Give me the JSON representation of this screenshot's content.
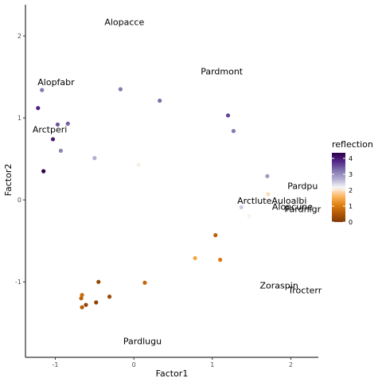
{
  "chart_data": {
    "type": "scatter",
    "xlabel": "Factor1",
    "ylabel": "Factor2",
    "xlim": [
      -1.38,
      2.35
    ],
    "ylim": [
      -1.92,
      2.38
    ],
    "x_ticks": [
      -1,
      0,
      1,
      2
    ],
    "x_tick_labels": [
      "-1",
      "0",
      "1",
      "2"
    ],
    "y_ticks": [
      -1,
      0,
      1,
      2
    ],
    "y_tick_labels": [
      "-1",
      "0",
      "1",
      "2"
    ],
    "grid": false,
    "color_scale": {
      "title": "reflection",
      "min": 0,
      "max": 4.35,
      "ticks": [
        0,
        1,
        2,
        3,
        4
      ],
      "tick_labels": [
        "0",
        "1",
        "2",
        "3",
        "4"
      ],
      "colors": [
        "#7f3b08",
        "#b35806",
        "#e08214",
        "#fdb863",
        "#f7f7f7",
        "#b2abd2",
        "#8073ac",
        "#542788",
        "#2d004b"
      ]
    },
    "points": [
      {
        "x": -1.17,
        "y": 1.34,
        "v": 3.2
      },
      {
        "x": -1.22,
        "y": 1.12,
        "v": 3.9
      },
      {
        "x": -0.97,
        "y": 0.92,
        "v": 3.5
      },
      {
        "x": -0.84,
        "y": 0.93,
        "v": 3.4
      },
      {
        "x": -1.03,
        "y": 0.74,
        "v": 4.0
      },
      {
        "x": -0.93,
        "y": 0.6,
        "v": 3.1
      },
      {
        "x": -1.15,
        "y": 0.35,
        "v": 4.35
      },
      {
        "x": -0.5,
        "y": 0.51,
        "v": 2.7
      },
      {
        "x": -0.17,
        "y": 1.35,
        "v": 3.2
      },
      {
        "x": 0.33,
        "y": 1.21,
        "v": 3.3
      },
      {
        "x": 0.06,
        "y": 0.43,
        "v": 2.1
      },
      {
        "x": 1.2,
        "y": 1.03,
        "v": 3.6
      },
      {
        "x": 1.27,
        "y": 0.84,
        "v": 3.2
      },
      {
        "x": 1.7,
        "y": 0.29,
        "v": 2.9
      },
      {
        "x": 1.71,
        "y": 0.07,
        "v": 1.95
      },
      {
        "x": 1.37,
        "y": -0.09,
        "v": 2.5
      },
      {
        "x": 1.47,
        "y": -0.2,
        "v": 2.15
      },
      {
        "x": 1.04,
        "y": -0.43,
        "v": 0.65
      },
      {
        "x": 0.78,
        "y": -0.71,
        "v": 1.45
      },
      {
        "x": 1.1,
        "y": -0.73,
        "v": 1.0
      },
      {
        "x": 0.14,
        "y": -1.01,
        "v": 0.75
      },
      {
        "x": -0.45,
        "y": -1.0,
        "v": 0.25
      },
      {
        "x": -0.31,
        "y": -1.18,
        "v": 0.3
      },
      {
        "x": -0.66,
        "y": -1.16,
        "v": 0.8
      },
      {
        "x": -0.67,
        "y": -1.2,
        "v": 0.65
      },
      {
        "x": -0.61,
        "y": -1.28,
        "v": 0.15
      },
      {
        "x": -0.48,
        "y": -1.25,
        "v": 0.15
      },
      {
        "x": -0.66,
        "y": -1.31,
        "v": 0.55
      }
    ],
    "labels": [
      {
        "text": "Alopacce",
        "x": -0.12,
        "y": 2.17
      },
      {
        "text": "Alopfabr",
        "x": -0.99,
        "y": 1.44
      },
      {
        "text": "Arctperi",
        "x": -1.07,
        "y": 0.86
      },
      {
        "text": "Pardmont",
        "x": 1.12,
        "y": 1.57
      },
      {
        "text": "Pardpu",
        "x": 2.15,
        "y": 0.17
      },
      {
        "text": "ArctluteAuloalbi",
        "x": 1.76,
        "y": -0.01
      },
      {
        "text": "Alopcune",
        "x": 2.02,
        "y": -0.08
      },
      {
        "text": "Pardnigr",
        "x": 2.15,
        "y": -0.11
      },
      {
        "text": "Zoraspin",
        "x": 1.85,
        "y": -1.04
      },
      {
        "text": "Trocterr",
        "x": 2.18,
        "y": -1.1
      },
      {
        "text": "Pardlugu",
        "x": 0.11,
        "y": -1.72
      }
    ]
  }
}
